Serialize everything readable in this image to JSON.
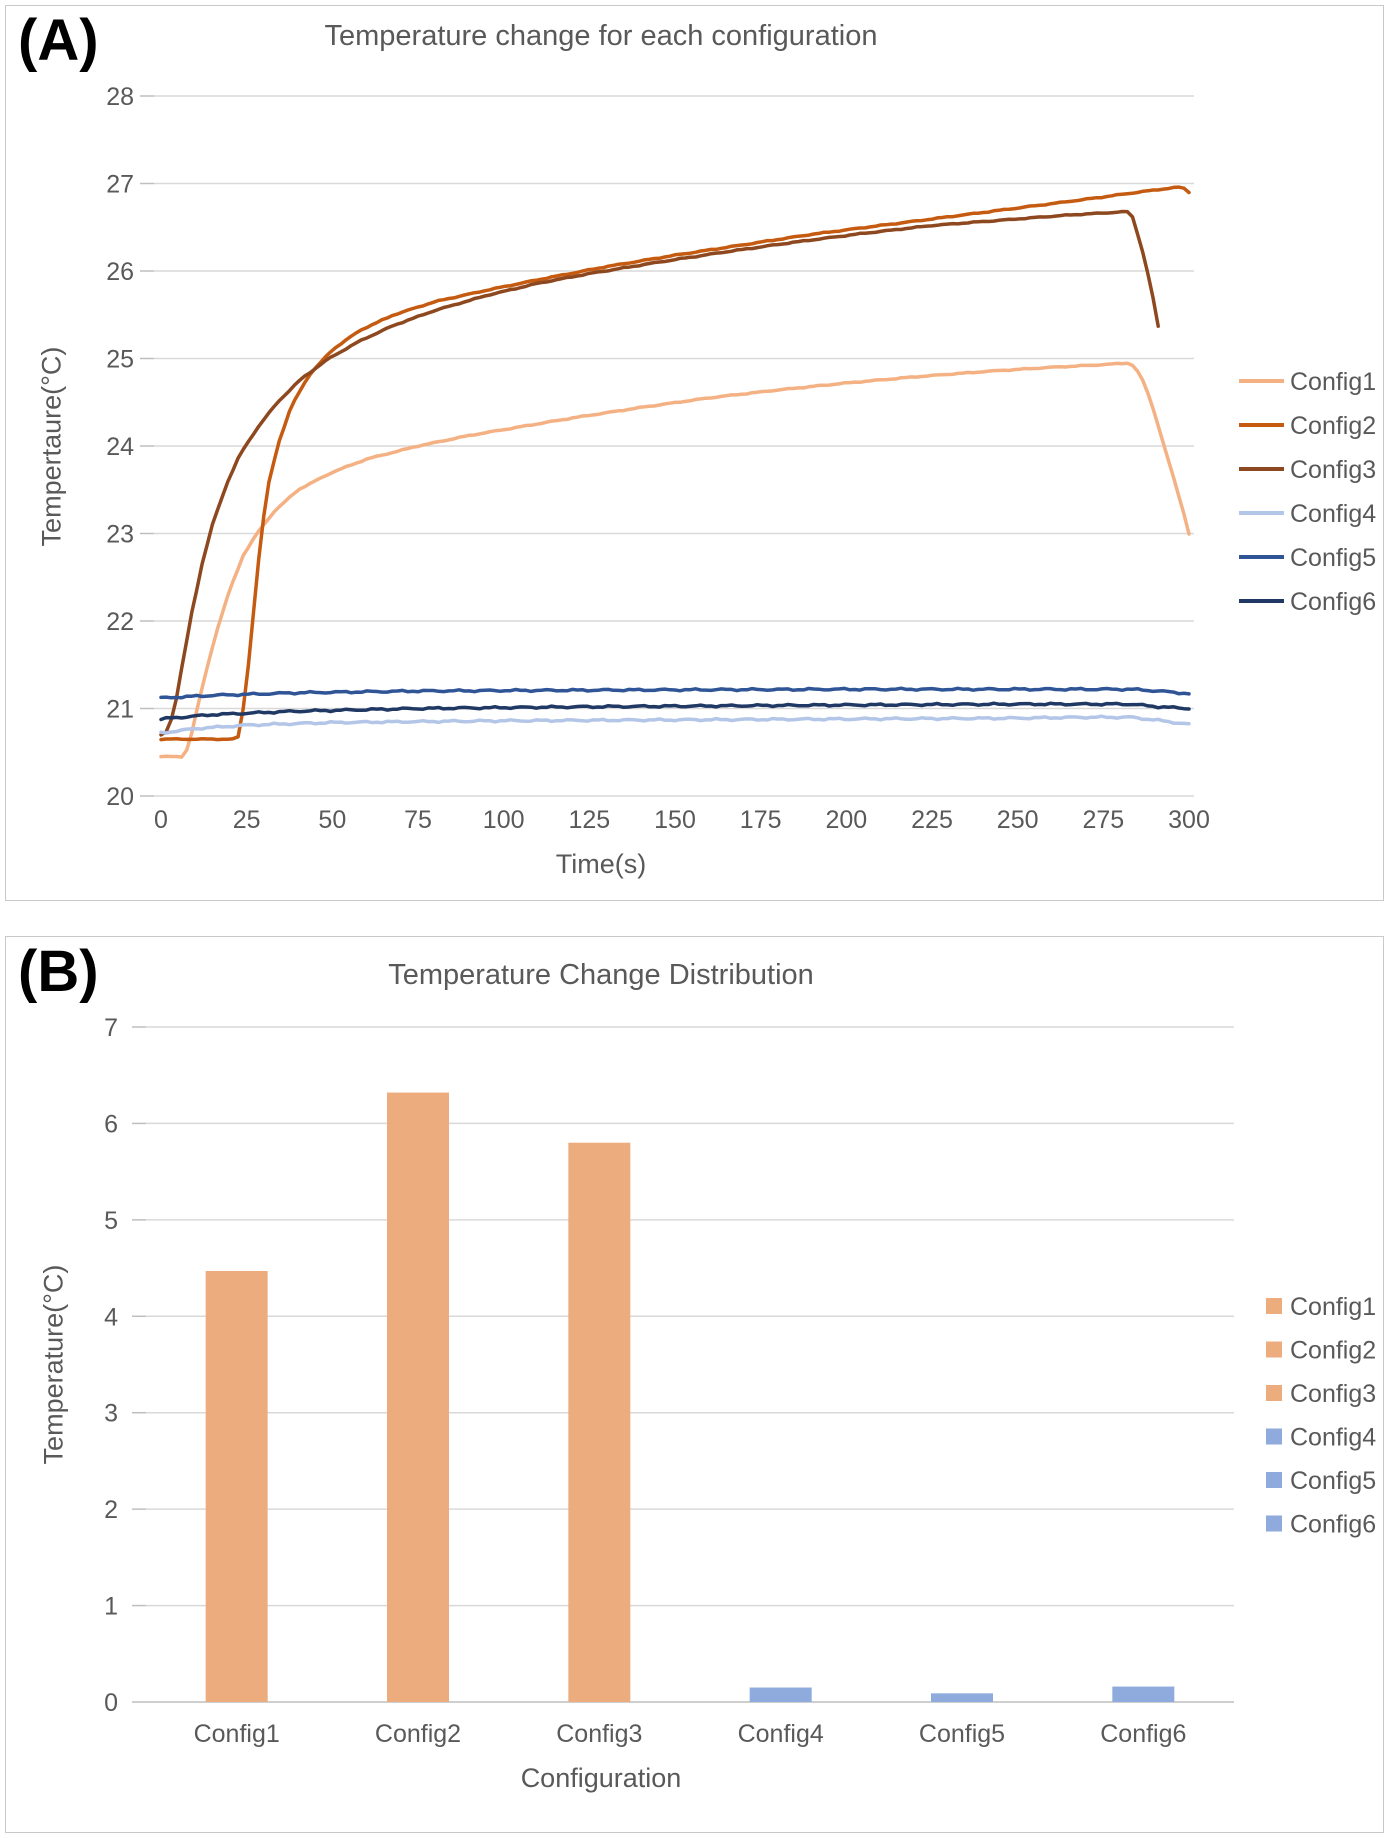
{
  "panel_a": {
    "label": "(A)",
    "title": "Temperature change for each configuration",
    "y_title": "Tempertaure(°C)",
    "x_title": "Time(s)"
  },
  "panel_b": {
    "label": "(B)",
    "title": "Temperature Change Distribution",
    "y_title": "Temperature(°C)",
    "x_title": "Configuration"
  },
  "colors": {
    "text": "#595959",
    "grid": "#d9d9d9",
    "axis_tick": "#bfbfbf",
    "panel_border": "#c9c9c9",
    "bar_orange": "#edac7e",
    "bar_blue": "#8faadc"
  },
  "chart_data": [
    {
      "type": "line",
      "title": "Temperature change for each configuration",
      "xlabel": "Time(s)",
      "ylabel": "Tempertaure(°C)",
      "xlim": [
        0,
        300
      ],
      "ylim": [
        20,
        28
      ],
      "x_ticks": [
        0,
        25,
        50,
        75,
        100,
        125,
        150,
        175,
        200,
        225,
        250,
        275,
        300
      ],
      "y_ticks": [
        20,
        21,
        22,
        23,
        24,
        25,
        26,
        27,
        28
      ],
      "grid": true,
      "legend_position": "right",
      "series": [
        {
          "name": "Config1",
          "color": "#f4b183",
          "points": [
            [
              0,
              20.45
            ],
            [
              6,
              20.45
            ],
            [
              8,
              20.55
            ],
            [
              10,
              20.9
            ],
            [
              13,
              21.4
            ],
            [
              16,
              21.85
            ],
            [
              20,
              22.35
            ],
            [
              24,
              22.75
            ],
            [
              28,
              23.0
            ],
            [
              33,
              23.25
            ],
            [
              40,
              23.5
            ],
            [
              50,
              23.7
            ],
            [
              60,
              23.85
            ],
            [
              75,
              24.0
            ],
            [
              90,
              24.12
            ],
            [
              105,
              24.22
            ],
            [
              120,
              24.32
            ],
            [
              140,
              24.44
            ],
            [
              160,
              24.55
            ],
            [
              180,
              24.64
            ],
            [
              200,
              24.72
            ],
            [
              220,
              24.79
            ],
            [
              240,
              24.85
            ],
            [
              260,
              24.9
            ],
            [
              275,
              24.93
            ],
            [
              283,
              24.95
            ],
            [
              286,
              24.8
            ],
            [
              289,
              24.5
            ],
            [
              292,
              24.1
            ],
            [
              295,
              23.7
            ],
            [
              298,
              23.3
            ],
            [
              300,
              23.0
            ]
          ]
        },
        {
          "name": "Config2",
          "color": "#c55a11",
          "points": [
            [
              0,
              20.65
            ],
            [
              22,
              20.65
            ],
            [
              23,
              20.7
            ],
            [
              25,
              21.3
            ],
            [
              27,
              22.1
            ],
            [
              29,
              22.9
            ],
            [
              31,
              23.5
            ],
            [
              34,
              24.0
            ],
            [
              38,
              24.45
            ],
            [
              43,
              24.8
            ],
            [
              50,
              25.1
            ],
            [
              58,
              25.32
            ],
            [
              68,
              25.5
            ],
            [
              80,
              25.65
            ],
            [
              95,
              25.78
            ],
            [
              110,
              25.9
            ],
            [
              130,
              26.05
            ],
            [
              150,
              26.18
            ],
            [
              170,
              26.3
            ],
            [
              190,
              26.42
            ],
            [
              210,
              26.52
            ],
            [
              230,
              26.62
            ],
            [
              250,
              26.72
            ],
            [
              270,
              26.82
            ],
            [
              285,
              26.9
            ],
            [
              295,
              26.95
            ],
            [
              298,
              26.96
            ],
            [
              300,
              26.9
            ]
          ]
        },
        {
          "name": "Config3",
          "color": "#8e481f",
          "points": [
            [
              0,
              20.7
            ],
            [
              2,
              20.75
            ],
            [
              4,
              21.0
            ],
            [
              6,
              21.45
            ],
            [
              9,
              22.1
            ],
            [
              12,
              22.65
            ],
            [
              15,
              23.1
            ],
            [
              19,
              23.55
            ],
            [
              23,
              23.9
            ],
            [
              28,
              24.2
            ],
            [
              34,
              24.5
            ],
            [
              41,
              24.77
            ],
            [
              49,
              25.0
            ],
            [
              58,
              25.2
            ],
            [
              68,
              25.38
            ],
            [
              80,
              25.55
            ],
            [
              95,
              25.72
            ],
            [
              110,
              25.86
            ],
            [
              125,
              25.97
            ],
            [
              145,
              26.1
            ],
            [
              165,
              26.22
            ],
            [
              185,
              26.33
            ],
            [
              205,
              26.43
            ],
            [
              225,
              26.52
            ],
            [
              245,
              26.58
            ],
            [
              265,
              26.64
            ],
            [
              278,
              26.67
            ],
            [
              283,
              26.68
            ],
            [
              286,
              26.3
            ],
            [
              289,
              25.8
            ],
            [
              292,
              25.15
            ]
          ]
        },
        {
          "name": "Config4",
          "color": "#b3c6e7",
          "points": [
            [
              0,
              20.72
            ],
            [
              10,
              20.77
            ],
            [
              25,
              20.81
            ],
            [
              50,
              20.84
            ],
            [
              100,
              20.86
            ],
            [
              150,
              20.87
            ],
            [
              200,
              20.88
            ],
            [
              250,
              20.89
            ],
            [
              270,
              20.9
            ],
            [
              283,
              20.9
            ],
            [
              290,
              20.87
            ],
            [
              300,
              20.82
            ]
          ]
        },
        {
          "name": "Config5",
          "color": "#2f5597",
          "points": [
            [
              0,
              21.12
            ],
            [
              15,
              21.15
            ],
            [
              40,
              21.18
            ],
            [
              75,
              21.2
            ],
            [
              125,
              21.21
            ],
            [
              200,
              21.22
            ],
            [
              260,
              21.22
            ],
            [
              283,
              21.22
            ],
            [
              291,
              21.2
            ],
            [
              300,
              21.17
            ]
          ]
        },
        {
          "name": "Config6",
          "color": "#1f3864",
          "points": [
            [
              0,
              20.88
            ],
            [
              15,
              20.93
            ],
            [
              40,
              20.97
            ],
            [
              75,
              21.0
            ],
            [
              125,
              21.02
            ],
            [
              200,
              21.04
            ],
            [
              250,
              21.05
            ],
            [
              283,
              21.05
            ],
            [
              291,
              21.02
            ],
            [
              300,
              21.0
            ]
          ]
        }
      ]
    },
    {
      "type": "bar",
      "title": "Temperature Change Distribution",
      "xlabel": "Configuration",
      "ylabel": "Temperature(°C)",
      "ylim": [
        0,
        7
      ],
      "y_ticks": [
        0,
        1,
        2,
        3,
        4,
        5,
        6,
        7
      ],
      "grid": true,
      "legend_position": "right",
      "categories": [
        "Config1",
        "Config2",
        "Config3",
        "Config4",
        "Config5",
        "Config6"
      ],
      "values": [
        4.47,
        6.32,
        5.8,
        0.15,
        0.09,
        0.16
      ],
      "bar_colors": [
        "#edac7e",
        "#edac7e",
        "#edac7e",
        "#8faadc",
        "#8faadc",
        "#8faadc"
      ],
      "legend": [
        {
          "label": "Config1",
          "color": "#edac7e"
        },
        {
          "label": "Config2",
          "color": "#edac7e"
        },
        {
          "label": "Config3",
          "color": "#edac7e"
        },
        {
          "label": "Config4",
          "color": "#8faadc"
        },
        {
          "label": "Config5",
          "color": "#8faadc"
        },
        {
          "label": "Config6",
          "color": "#8faadc"
        }
      ]
    }
  ]
}
